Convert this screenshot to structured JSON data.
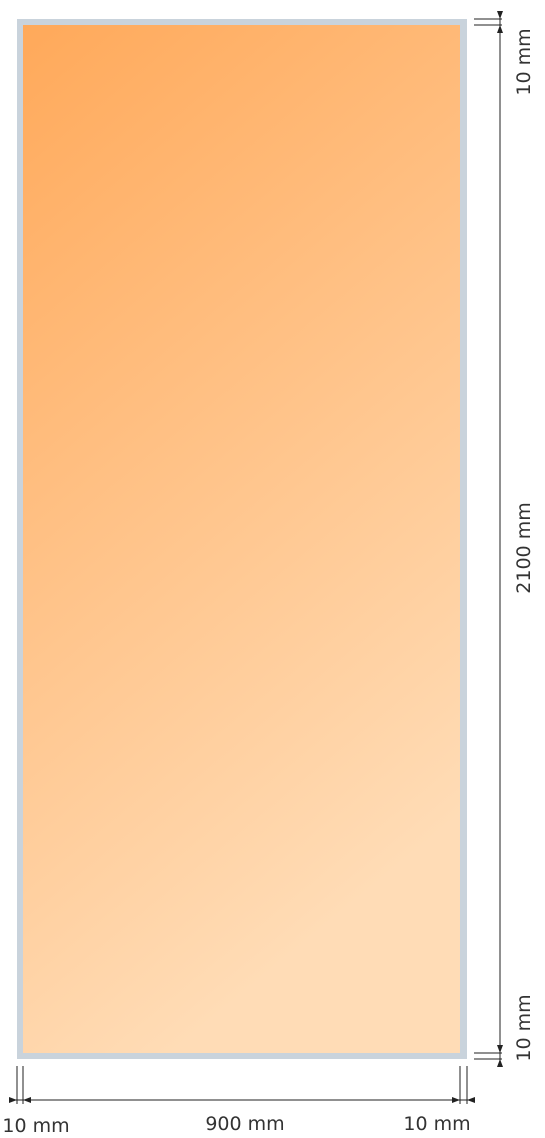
{
  "colors": {
    "frame": "#c9d3dc",
    "panel_top": "#ffa95a",
    "panel_bottom": "#ffdcb6",
    "dimension_line": "#222222",
    "label": "#333333"
  },
  "dimensions": {
    "frame_top": "10 mm",
    "height": "2100 mm",
    "frame_bottom": "10 mm",
    "frame_left": "10 mm",
    "width": "900 mm",
    "frame_right": "10 mm"
  }
}
